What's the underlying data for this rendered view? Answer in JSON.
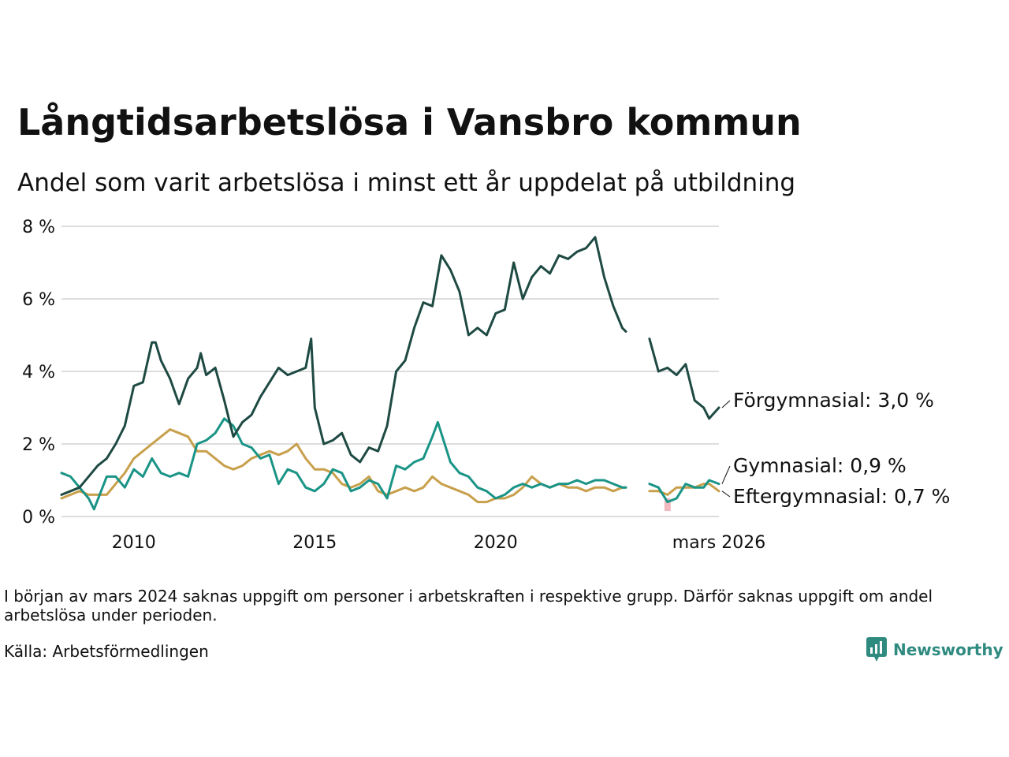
{
  "title": "Långtidsarbetslösa i Vansbro kommun",
  "subtitle": "Andel som varit arbetslösa i minst ett år uppdelat på utbildning",
  "note": "I början av mars 2024 saknas uppgift om personer i arbetskraften i respektive grupp. Därför saknas uppgift om andel arbetslösa under perioden.",
  "source": "Källa: Arbetsförmedlingen",
  "brand": "Newsworthy",
  "colors": {
    "forgymnasial": "#1e4a43",
    "gymnasial": "#1a9486",
    "eftergymnasial": "#c8a04c",
    "gap": "#f2b8c0",
    "grid": "#dddddd",
    "brand": "#2f8a80"
  },
  "chart_data": {
    "type": "line",
    "title": "Långtidsarbetslösa i Vansbro kommun",
    "xlabel": "",
    "ylabel": "",
    "xlim": [
      2008.0,
      2026.17
    ],
    "ylim": [
      0,
      8
    ],
    "grid": true,
    "y_ticks": [
      0,
      2,
      4,
      6,
      8
    ],
    "y_tick_labels": [
      "0 %",
      "2 %",
      "4 %",
      "6 %",
      "8 %"
    ],
    "x_ticks": [
      2010,
      2015,
      2020,
      2026.17
    ],
    "x_tick_labels": [
      "2010",
      "2015",
      "2020",
      "mars 2026"
    ],
    "missing_period": [
      2023.75,
      2024.08
    ],
    "series": [
      {
        "name": "Förgymnasial",
        "label": "Förgymnasial: 3,0 %",
        "points": [
          [
            2008.0,
            0.6
          ],
          [
            2008.25,
            0.7
          ],
          [
            2008.5,
            0.8
          ],
          [
            2008.75,
            1.1
          ],
          [
            2009.0,
            1.4
          ],
          [
            2009.25,
            1.6
          ],
          [
            2009.5,
            2.0
          ],
          [
            2009.75,
            2.5
          ],
          [
            2010.0,
            3.6
          ],
          [
            2010.25,
            3.7
          ],
          [
            2010.5,
            4.8
          ],
          [
            2010.6,
            4.8
          ],
          [
            2010.75,
            4.3
          ],
          [
            2011.0,
            3.8
          ],
          [
            2011.25,
            3.1
          ],
          [
            2011.5,
            3.8
          ],
          [
            2011.75,
            4.1
          ],
          [
            2011.85,
            4.5
          ],
          [
            2012.0,
            3.9
          ],
          [
            2012.25,
            4.1
          ],
          [
            2012.5,
            3.2
          ],
          [
            2012.75,
            2.2
          ],
          [
            2013.0,
            2.6
          ],
          [
            2013.25,
            2.8
          ],
          [
            2013.5,
            3.3
          ],
          [
            2013.75,
            3.7
          ],
          [
            2014.0,
            4.1
          ],
          [
            2014.25,
            3.9
          ],
          [
            2014.5,
            4.0
          ],
          [
            2014.75,
            4.1
          ],
          [
            2014.9,
            4.9
          ],
          [
            2015.0,
            3.0
          ],
          [
            2015.25,
            2.0
          ],
          [
            2015.5,
            2.1
          ],
          [
            2015.75,
            2.3
          ],
          [
            2016.0,
            1.7
          ],
          [
            2016.25,
            1.5
          ],
          [
            2016.5,
            1.9
          ],
          [
            2016.75,
            1.8
          ],
          [
            2017.0,
            2.5
          ],
          [
            2017.25,
            4.0
          ],
          [
            2017.5,
            4.3
          ],
          [
            2017.75,
            5.2
          ],
          [
            2018.0,
            5.9
          ],
          [
            2018.25,
            5.8
          ],
          [
            2018.5,
            7.2
          ],
          [
            2018.75,
            6.8
          ],
          [
            2019.0,
            6.2
          ],
          [
            2019.25,
            5.0
          ],
          [
            2019.5,
            5.2
          ],
          [
            2019.75,
            5.0
          ],
          [
            2020.0,
            5.6
          ],
          [
            2020.25,
            5.7
          ],
          [
            2020.5,
            7.0
          ],
          [
            2020.75,
            6.0
          ],
          [
            2021.0,
            6.6
          ],
          [
            2021.25,
            6.9
          ],
          [
            2021.5,
            6.7
          ],
          [
            2021.75,
            7.2
          ],
          [
            2022.0,
            7.1
          ],
          [
            2022.25,
            7.3
          ],
          [
            2022.5,
            7.4
          ],
          [
            2022.75,
            7.7
          ],
          [
            2023.0,
            6.6
          ],
          [
            2023.25,
            5.8
          ],
          [
            2023.5,
            5.2
          ],
          [
            2023.6,
            5.1
          ],
          [
            null,
            null
          ],
          [
            2024.25,
            4.9
          ],
          [
            2024.5,
            4.0
          ],
          [
            2024.75,
            4.1
          ],
          [
            2025.0,
            3.9
          ],
          [
            2025.25,
            4.2
          ],
          [
            2025.5,
            3.2
          ],
          [
            2025.75,
            3.0
          ],
          [
            2025.9,
            2.7
          ],
          [
            2026.17,
            3.0
          ]
        ]
      },
      {
        "name": "Gymnasial",
        "label": "Gymnasial: 0,9 %",
        "points": [
          [
            2008.0,
            1.2
          ],
          [
            2008.25,
            1.1
          ],
          [
            2008.5,
            0.8
          ],
          [
            2008.75,
            0.5
          ],
          [
            2008.9,
            0.2
          ],
          [
            2009.25,
            1.1
          ],
          [
            2009.5,
            1.1
          ],
          [
            2009.75,
            0.8
          ],
          [
            2010.0,
            1.3
          ],
          [
            2010.25,
            1.1
          ],
          [
            2010.5,
            1.6
          ],
          [
            2010.75,
            1.2
          ],
          [
            2011.0,
            1.1
          ],
          [
            2011.25,
            1.2
          ],
          [
            2011.5,
            1.1
          ],
          [
            2011.75,
            2.0
          ],
          [
            2012.0,
            2.1
          ],
          [
            2012.25,
            2.3
          ],
          [
            2012.5,
            2.7
          ],
          [
            2012.75,
            2.5
          ],
          [
            2013.0,
            2.0
          ],
          [
            2013.25,
            1.9
          ],
          [
            2013.5,
            1.6
          ],
          [
            2013.75,
            1.7
          ],
          [
            2014.0,
            0.9
          ],
          [
            2014.25,
            1.3
          ],
          [
            2014.5,
            1.2
          ],
          [
            2014.75,
            0.8
          ],
          [
            2015.0,
            0.7
          ],
          [
            2015.25,
            0.9
          ],
          [
            2015.5,
            1.3
          ],
          [
            2015.75,
            1.2
          ],
          [
            2016.0,
            0.7
          ],
          [
            2016.25,
            0.8
          ],
          [
            2016.5,
            1.0
          ],
          [
            2016.75,
            0.9
          ],
          [
            2017.0,
            0.5
          ],
          [
            2017.25,
            1.4
          ],
          [
            2017.5,
            1.3
          ],
          [
            2017.75,
            1.5
          ],
          [
            2018.0,
            1.6
          ],
          [
            2018.25,
            2.2
          ],
          [
            2018.4,
            2.6
          ],
          [
            2018.75,
            1.5
          ],
          [
            2019.0,
            1.2
          ],
          [
            2019.25,
            1.1
          ],
          [
            2019.5,
            0.8
          ],
          [
            2019.75,
            0.7
          ],
          [
            2020.0,
            0.5
          ],
          [
            2020.25,
            0.6
          ],
          [
            2020.5,
            0.8
          ],
          [
            2020.75,
            0.9
          ],
          [
            2021.0,
            0.8
          ],
          [
            2021.25,
            0.9
          ],
          [
            2021.5,
            0.8
          ],
          [
            2021.75,
            0.9
          ],
          [
            2022.0,
            0.9
          ],
          [
            2022.25,
            1.0
          ],
          [
            2022.5,
            0.9
          ],
          [
            2022.75,
            1.0
          ],
          [
            2023.0,
            1.0
          ],
          [
            2023.25,
            0.9
          ],
          [
            2023.5,
            0.8
          ],
          [
            2023.6,
            0.8
          ],
          [
            null,
            null
          ],
          [
            2024.25,
            0.9
          ],
          [
            2024.5,
            0.8
          ],
          [
            2024.75,
            0.4
          ],
          [
            2025.0,
            0.5
          ],
          [
            2025.25,
            0.9
          ],
          [
            2025.5,
            0.8
          ],
          [
            2025.75,
            0.8
          ],
          [
            2025.9,
            1.0
          ],
          [
            2026.17,
            0.9
          ]
        ]
      },
      {
        "name": "Eftergymnasial",
        "label": "Eftergymnasial: 0,7 %",
        "points": [
          [
            2008.0,
            0.5
          ],
          [
            2008.25,
            0.6
          ],
          [
            2008.5,
            0.7
          ],
          [
            2008.75,
            0.6
          ],
          [
            2009.0,
            0.6
          ],
          [
            2009.25,
            0.6
          ],
          [
            2009.5,
            0.9
          ],
          [
            2009.75,
            1.2
          ],
          [
            2010.0,
            1.6
          ],
          [
            2010.25,
            1.8
          ],
          [
            2010.5,
            2.0
          ],
          [
            2010.75,
            2.2
          ],
          [
            2011.0,
            2.4
          ],
          [
            2011.25,
            2.3
          ],
          [
            2011.5,
            2.2
          ],
          [
            2011.75,
            1.8
          ],
          [
            2012.0,
            1.8
          ],
          [
            2012.25,
            1.6
          ],
          [
            2012.5,
            1.4
          ],
          [
            2012.75,
            1.3
          ],
          [
            2013.0,
            1.4
          ],
          [
            2013.25,
            1.6
          ],
          [
            2013.5,
            1.7
          ],
          [
            2013.75,
            1.8
          ],
          [
            2014.0,
            1.7
          ],
          [
            2014.25,
            1.8
          ],
          [
            2014.5,
            2.0
          ],
          [
            2014.75,
            1.6
          ],
          [
            2015.0,
            1.3
          ],
          [
            2015.25,
            1.3
          ],
          [
            2015.5,
            1.2
          ],
          [
            2015.75,
            0.9
          ],
          [
            2016.0,
            0.8
          ],
          [
            2016.25,
            0.9
          ],
          [
            2016.5,
            1.1
          ],
          [
            2016.75,
            0.7
          ],
          [
            2017.0,
            0.6
          ],
          [
            2017.25,
            0.7
          ],
          [
            2017.5,
            0.8
          ],
          [
            2017.75,
            0.7
          ],
          [
            2018.0,
            0.8
          ],
          [
            2018.25,
            1.1
          ],
          [
            2018.5,
            0.9
          ],
          [
            2018.75,
            0.8
          ],
          [
            2019.0,
            0.7
          ],
          [
            2019.25,
            0.6
          ],
          [
            2019.5,
            0.4
          ],
          [
            2019.75,
            0.4
          ],
          [
            2020.0,
            0.5
          ],
          [
            2020.25,
            0.5
          ],
          [
            2020.5,
            0.6
          ],
          [
            2020.75,
            0.8
          ],
          [
            2021.0,
            1.1
          ],
          [
            2021.25,
            0.9
          ],
          [
            2021.5,
            0.8
          ],
          [
            2021.75,
            0.9
          ],
          [
            2022.0,
            0.8
          ],
          [
            2022.25,
            0.8
          ],
          [
            2022.5,
            0.7
          ],
          [
            2022.75,
            0.8
          ],
          [
            2023.0,
            0.8
          ],
          [
            2023.25,
            0.7
          ],
          [
            2023.5,
            0.8
          ],
          [
            2023.6,
            0.8
          ],
          [
            null,
            null
          ],
          [
            2024.25,
            0.7
          ],
          [
            2024.5,
            0.7
          ],
          [
            2024.75,
            0.6
          ],
          [
            2025.0,
            0.8
          ],
          [
            2025.25,
            0.8
          ],
          [
            2025.5,
            0.8
          ],
          [
            2025.75,
            0.9
          ],
          [
            2025.9,
            0.9
          ],
          [
            2026.17,
            0.7
          ]
        ]
      }
    ]
  }
}
